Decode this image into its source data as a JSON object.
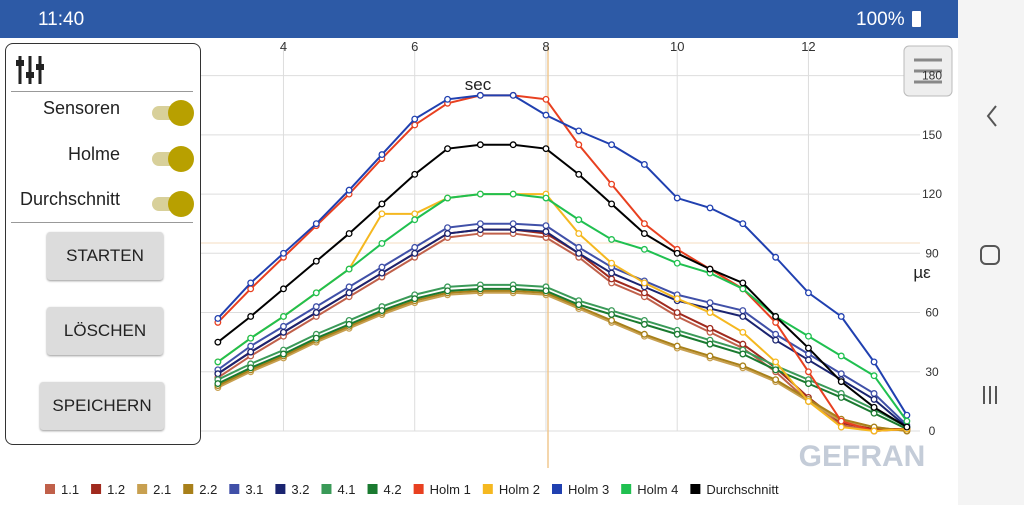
{
  "status": {
    "time": "11:40",
    "battery": "100%"
  },
  "panel": {
    "toggles": [
      "Sensoren",
      "Holme",
      "Durchschnitt"
    ],
    "buttons": [
      "STARTEN",
      "LÖSCHEN",
      "SPEICHERN"
    ]
  },
  "watermark": "GEFRAN",
  "chart_data": {
    "type": "line",
    "x_label": "sec",
    "y_label": "µε",
    "xlim": [
      0,
      13.7
    ],
    "ylim": [
      0,
      195
    ],
    "xticks": [
      4,
      6,
      8,
      10,
      12
    ],
    "yticks": [
      0,
      30,
      60,
      90,
      120,
      150,
      180
    ],
    "grid": true,
    "x": [
      3,
      3.5,
      4,
      4.5,
      5,
      5.5,
      6,
      6.5,
      7,
      7.5,
      8,
      8.5,
      9,
      9.5,
      10,
      10.5,
      11,
      11.5,
      12,
      12.5,
      13,
      13.5
    ],
    "series": [
      {
        "name": "1.1",
        "color": "#c0604a",
        "values": [
          27,
          38,
          48,
          58,
          68,
          78,
          88,
          98,
          100,
          100,
          98,
          88,
          75,
          68,
          58,
          50,
          42,
          30,
          15,
          3,
          0,
          1
        ]
      },
      {
        "name": "1.2",
        "color": "#a02a1e",
        "values": [
          29,
          40,
          50,
          60,
          70,
          80,
          90,
          100,
          102,
          102,
          100,
          90,
          77,
          70,
          60,
          52,
          44,
          32,
          17,
          4,
          1,
          1
        ]
      },
      {
        "name": "2.1",
        "color": "#c8a050",
        "values": [
          22,
          30,
          37,
          45,
          52,
          59,
          65,
          69,
          70,
          70,
          69,
          62,
          55,
          48,
          42,
          37,
          32,
          25,
          15,
          5,
          2,
          0
        ]
      },
      {
        "name": "2.2",
        "color": "#a8801a",
        "values": [
          23,
          31,
          38,
          46,
          53,
          60,
          66,
          70,
          71,
          71,
          70,
          63,
          56,
          49,
          43,
          38,
          33,
          26,
          16,
          6,
          2,
          0
        ]
      },
      {
        "name": "3.1",
        "color": "#4050a8",
        "values": [
          31,
          43,
          53,
          63,
          73,
          83,
          93,
          103,
          105,
          105,
          104,
          93,
          83,
          76,
          69,
          65,
          61,
          49,
          39,
          29,
          19,
          3
        ]
      },
      {
        "name": "3.2",
        "color": "#1a2470",
        "values": [
          29,
          40,
          50,
          60,
          70,
          80,
          90,
          100,
          102,
          102,
          101,
          90,
          80,
          73,
          66,
          62,
          58,
          46,
          36,
          26,
          16,
          2
        ]
      },
      {
        "name": "4.1",
        "color": "#3a9a58",
        "values": [
          26,
          34,
          41,
          49,
          56,
          63,
          69,
          73,
          74,
          74,
          73,
          66,
          61,
          56,
          51,
          46,
          41,
          33,
          26,
          19,
          11,
          2
        ]
      },
      {
        "name": "4.2",
        "color": "#1a7a30",
        "values": [
          24,
          32,
          39,
          47,
          54,
          61,
          67,
          71,
          72,
          72,
          71,
          64,
          59,
          54,
          49,
          44,
          39,
          31,
          24,
          17,
          9,
          1
        ]
      },
      {
        "name": "Holm 1",
        "color": "#e84020",
        "values": [
          55,
          72,
          88,
          104,
          120,
          138,
          155,
          166,
          170,
          170,
          168,
          145,
          125,
          105,
          92,
          82,
          72,
          55,
          30,
          5,
          0,
          1
        ]
      },
      {
        "name": "Holm 2",
        "color": "#f5b820",
        "values": [
          35,
          47,
          58,
          70,
          82,
          110,
          110,
          118,
          120,
          120,
          120,
          100,
          85,
          75,
          67,
          60,
          50,
          35,
          15,
          2,
          0,
          1
        ]
      },
      {
        "name": "Holm 3",
        "color": "#2040b0",
        "values": [
          57,
          75,
          90,
          105,
          122,
          140,
          158,
          168,
          170,
          170,
          160,
          152,
          145,
          135,
          118,
          113,
          105,
          88,
          70,
          58,
          35,
          8
        ]
      },
      {
        "name": "Holm 4",
        "color": "#20c050",
        "values": [
          35,
          47,
          58,
          70,
          82,
          95,
          107,
          118,
          120,
          120,
          118,
          107,
          97,
          92,
          85,
          80,
          72,
          58,
          48,
          38,
          28,
          5
        ]
      },
      {
        "name": "Durchschnitt",
        "color": "#000000",
        "values": [
          45,
          58,
          72,
          86,
          100,
          115,
          130,
          143,
          145,
          145,
          143,
          130,
          115,
          100,
          90,
          82,
          75,
          58,
          42,
          25,
          12,
          2
        ]
      }
    ]
  }
}
